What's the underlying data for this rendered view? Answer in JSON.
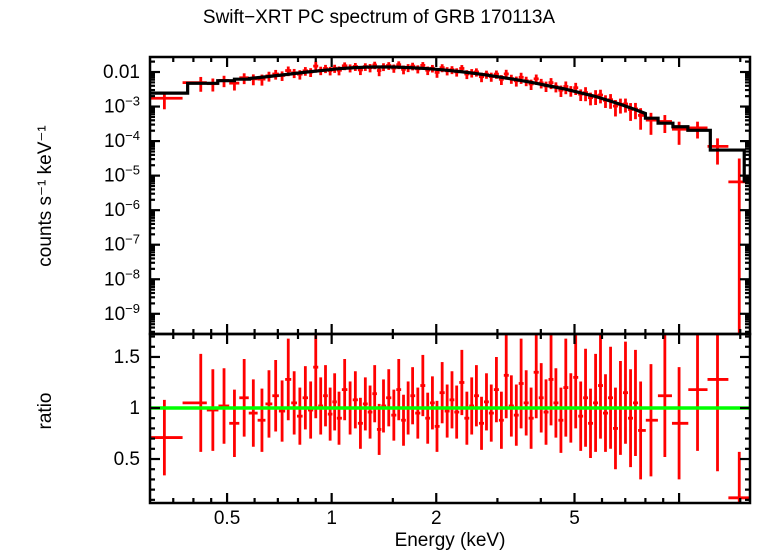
{
  "title": "Swift−XRT PC spectrum of GRB 170113A",
  "colors": {
    "data": "#ff0000",
    "model": "#000000",
    "reference_line": "#00ff00",
    "frame": "#000000",
    "background": "#ffffff"
  },
  "chart_data": [
    {
      "panel": "spectrum",
      "type": "scatter",
      "title": "Swift−XRT PC spectrum of GRB 170113A",
      "xlabel": "Energy (keV)",
      "ylabel": "counts s⁻¹ keV⁻¹",
      "xscale": "log",
      "yscale": "log",
      "xlim": [
        0.3,
        16
      ],
      "ylim": [
        2.6e-10,
        0.0272
      ],
      "grid": false,
      "legend": "none",
      "xticks_major": [
        {
          "v": 0.5,
          "label": "0.5"
        },
        {
          "v": 1,
          "label": "1"
        },
        {
          "v": 2,
          "label": "2"
        },
        {
          "v": 5,
          "label": "5"
        },
        {
          "v": 10,
          "label": ""
        }
      ],
      "xticks_minor": [
        0.35,
        0.4,
        0.45,
        0.6,
        0.7,
        0.8,
        0.9,
        1.5,
        3,
        4,
        6,
        7,
        8,
        9,
        15
      ],
      "yticks_major": [
        {
          "v": 0.01,
          "label": "0.01"
        },
        {
          "v": 0.001,
          "label": "10^−3"
        },
        {
          "v": 0.0001,
          "label": "10^−4"
        },
        {
          "v": 1e-05,
          "label": "10^−5"
        },
        {
          "v": 1e-06,
          "label": "10^−6"
        },
        {
          "v": 1e-07,
          "label": "10^−7"
        },
        {
          "v": 1e-08,
          "label": "10^−8"
        },
        {
          "v": 1e-09,
          "label": "10^−9"
        }
      ],
      "yticks_minor": "log minor ticks at 2–9 within each decade",
      "model_curve": [
        [
          0.3,
          0.00245
        ],
        [
          0.385,
          0.00245
        ],
        [
          0.385,
          0.0047
        ],
        [
          0.47,
          0.0047
        ],
        [
          0.47,
          0.0056
        ],
        [
          0.525,
          0.0056
        ],
        [
          0.525,
          0.0062
        ],
        [
          0.58,
          0.0062
        ],
        [
          0.58,
          0.0065
        ],
        [
          0.65,
          0.0073
        ],
        [
          0.75,
          0.0086
        ],
        [
          0.85,
          0.01
        ],
        [
          0.95,
          0.0112
        ],
        [
          1.05,
          0.0125
        ],
        [
          1.15,
          0.0133
        ],
        [
          1.3,
          0.014
        ],
        [
          1.5,
          0.014
        ],
        [
          1.7,
          0.0133
        ],
        [
          1.9,
          0.0125
        ],
        [
          2.1,
          0.0115
        ],
        [
          2.4,
          0.01
        ],
        [
          2.7,
          0.0086
        ],
        [
          3.0,
          0.0073
        ],
        [
          3.4,
          0.006
        ],
        [
          3.8,
          0.0049
        ],
        [
          4.2,
          0.004
        ],
        [
          4.7,
          0.0032
        ],
        [
          5.2,
          0.0025
        ],
        [
          5.7,
          0.002
        ],
        [
          6.2,
          0.00155
        ],
        [
          6.8,
          0.00115
        ],
        [
          7.4,
          0.00085
        ],
        [
          8.0,
          0.00063
        ],
        [
          8.0,
          0.00046
        ],
        [
          8.7,
          0.00046
        ],
        [
          8.7,
          0.00033
        ],
        [
          9.6,
          0.00033
        ],
        [
          9.6,
          0.00026
        ],
        [
          10.6,
          0.00026
        ],
        [
          10.6,
          0.000205
        ],
        [
          12.3,
          0.000205
        ],
        [
          12.3,
          5.5e-05
        ],
        [
          15.4,
          5.5e-05
        ],
        [
          15.4,
          7e-06
        ],
        [
          16.0,
          7e-06
        ]
      ],
      "points_note": "each point = [energy_keV, ratio_to_model, ratio_error]; counts value = model(E) × ratio; bin edges at log-midpoints, first bin starts 0.30 keV, last bin ends 16 keV",
      "points": [
        [
          0.33,
          0.71,
          0.37
        ],
        [
          0.42,
          1.05,
          0.48
        ],
        [
          0.455,
          0.98,
          0.4
        ],
        [
          0.49,
          1.02,
          0.37
        ],
        [
          0.525,
          0.85,
          0.33
        ],
        [
          0.56,
          1.1,
          0.38
        ],
        [
          0.595,
          0.95,
          0.33
        ],
        [
          0.63,
          0.88,
          0.31
        ],
        [
          0.66,
          1.04,
          0.33
        ],
        [
          0.69,
          1.12,
          0.35
        ],
        [
          0.72,
          0.97,
          0.3
        ],
        [
          0.75,
          1.28,
          0.4
        ],
        [
          0.78,
          1.05,
          0.31
        ],
        [
          0.81,
          0.92,
          0.28
        ],
        [
          0.84,
          1.1,
          0.31
        ],
        [
          0.87,
          0.98,
          0.28
        ],
        [
          0.9,
          1.4,
          0.5
        ],
        [
          0.93,
          1.02,
          0.28
        ],
        [
          0.96,
          1.12,
          0.3
        ],
        [
          0.99,
          0.94,
          0.26
        ],
        [
          1.02,
          1.06,
          0.28
        ],
        [
          1.05,
          0.9,
          0.26
        ],
        [
          1.09,
          1.18,
          0.3
        ],
        [
          1.13,
          1.0,
          0.26
        ],
        [
          1.17,
          1.08,
          0.28
        ],
        [
          1.21,
          0.85,
          0.25
        ],
        [
          1.25,
          1.04,
          0.26
        ],
        [
          1.29,
          0.96,
          0.26
        ],
        [
          1.33,
          1.14,
          0.28
        ],
        [
          1.37,
          0.79,
          0.25
        ],
        [
          1.41,
          1.02,
          0.26
        ],
        [
          1.46,
          1.1,
          0.28
        ],
        [
          1.51,
          0.93,
          0.25
        ],
        [
          1.56,
          1.18,
          0.3
        ],
        [
          1.61,
          0.88,
          0.25
        ],
        [
          1.66,
          1.0,
          0.26
        ],
        [
          1.71,
          1.12,
          0.28
        ],
        [
          1.77,
          0.95,
          0.25
        ],
        [
          1.83,
          1.22,
          0.3
        ],
        [
          1.89,
          0.9,
          0.25
        ],
        [
          1.95,
          1.05,
          0.26
        ],
        [
          2.01,
          0.82,
          0.25
        ],
        [
          2.08,
          1.15,
          0.3
        ],
        [
          2.15,
          0.97,
          0.26
        ],
        [
          2.22,
          1.08,
          0.28
        ],
        [
          2.29,
          0.96,
          0.26
        ],
        [
          2.37,
          1.25,
          0.32
        ],
        [
          2.45,
          0.9,
          0.26
        ],
        [
          2.53,
          1.02,
          0.28
        ],
        [
          2.61,
          1.12,
          0.3
        ],
        [
          2.7,
          0.85,
          0.26
        ],
        [
          2.79,
          1.06,
          0.28
        ],
        [
          2.88,
          0.95,
          0.28
        ],
        [
          2.98,
          1.18,
          0.32
        ],
        [
          3.08,
          0.88,
          0.28
        ],
        [
          3.18,
          1.32,
          0.42
        ],
        [
          3.29,
          1.02,
          0.3
        ],
        [
          3.4,
          0.93,
          0.3
        ],
        [
          3.51,
          1.24,
          0.44
        ],
        [
          3.63,
          1.05,
          0.32
        ],
        [
          3.75,
          0.9,
          0.3
        ],
        [
          3.88,
          1.35,
          0.45
        ],
        [
          4.01,
          1.1,
          0.34
        ],
        [
          4.14,
          0.96,
          0.32
        ],
        [
          4.28,
          1.28,
          0.45
        ],
        [
          4.42,
          1.05,
          0.34
        ],
        [
          4.57,
          0.88,
          0.32
        ],
        [
          4.72,
          1.2,
          0.48
        ],
        [
          4.88,
          1.0,
          0.34
        ],
        [
          5.04,
          1.3,
          0.5
        ],
        [
          5.21,
          0.92,
          0.34
        ],
        [
          5.38,
          1.1,
          0.48
        ],
        [
          5.56,
          0.85,
          0.34
        ],
        [
          5.75,
          1.05,
          0.48
        ],
        [
          5.94,
          1.22,
          0.52
        ],
        [
          6.14,
          0.95,
          0.38
        ],
        [
          6.35,
          1.1,
          0.5
        ],
        [
          6.56,
          0.8,
          0.4
        ],
        [
          6.78,
          1.0,
          0.46
        ],
        [
          7.01,
          1.15,
          0.5
        ],
        [
          7.25,
          0.9,
          0.48
        ],
        [
          7.49,
          1.05,
          0.52
        ],
        [
          7.75,
          0.78,
          0.48
        ],
        [
          8.3,
          0.88,
          0.55
        ],
        [
          9.1,
          1.12,
          0.6
        ],
        [
          10.0,
          0.85,
          0.55
        ],
        [
          11.3,
          1.18,
          0.6
        ],
        [
          12.9,
          1.28,
          0.9
        ],
        [
          14.9,
          0.12,
          0.45
        ]
      ]
    },
    {
      "panel": "ratio",
      "type": "scatter",
      "ylabel": "ratio",
      "yscale": "linear",
      "ylim": [
        0.069,
        1.725
      ],
      "yticks_major": [
        {
          "v": 0.5,
          "label": "0.5"
        },
        {
          "v": 1,
          "label": "1"
        },
        {
          "v": 1.5,
          "label": "1.5"
        }
      ],
      "yticks_minor": [
        0.1,
        0.2,
        0.3,
        0.4,
        0.6,
        0.7,
        0.8,
        0.9,
        1.1,
        1.2,
        1.3,
        1.4,
        1.6,
        1.7
      ],
      "reference_line": {
        "y": 1,
        "color": "#00ff00"
      },
      "points": "shared with spectrum panel: [energy_keV, ratio_to_model, ratio_error]"
    }
  ]
}
